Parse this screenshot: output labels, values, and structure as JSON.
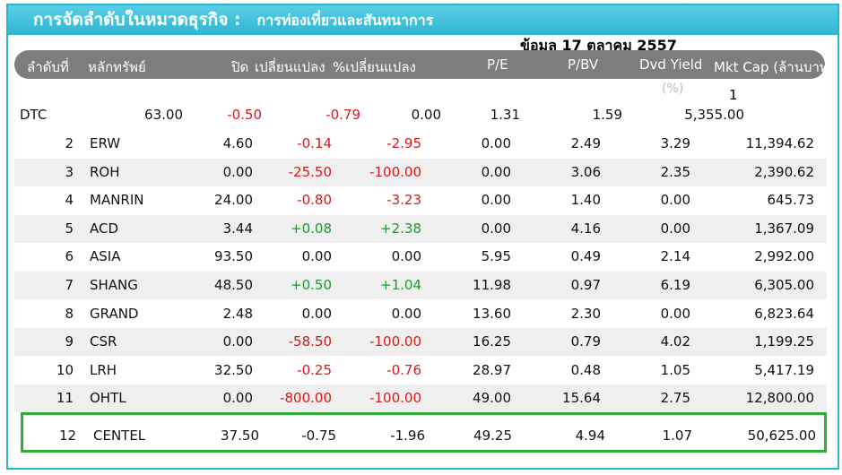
{
  "banner": {
    "title": "การจัดลำดับในหมวดธุรกิจ :",
    "category": "การท่องเที่ยวและสันทนาการ"
  },
  "date_text": "ข้อมูล 17 ตุลาคม 2557",
  "headers": {
    "rank": "ลำดับที่",
    "security": "หลักทรัพย์",
    "close": "ปิด",
    "change": "เปลี่ยนแปลง",
    "pct_change": "%เปลี่ยนแปลง",
    "pe": "P/E",
    "pbv": "P/BV",
    "dvd": "Dvd Yield",
    "dvd_unit": "(%)",
    "mktcap": "Mkt Cap (ล้านบาท)"
  },
  "first_row": {
    "rank": "1",
    "symbol": "DTC",
    "close": "63.00",
    "change": "-0.50",
    "pct_change": "-0.79",
    "pe": "0.00",
    "pbv": "1.31",
    "dvd": "1.59",
    "mktcap": "5,355.00"
  },
  "rows": [
    {
      "rank": "2",
      "symbol": "ERW",
      "close": "4.60",
      "change": "-0.14",
      "pct_change": "-2.95",
      "pe": "0.00",
      "pbv": "2.49",
      "dvd": "3.29",
      "mktcap": "11,394.62"
    },
    {
      "rank": "3",
      "symbol": "ROH",
      "close": "0.00",
      "change": "-25.50",
      "pct_change": "-100.00",
      "pe": "0.00",
      "pbv": "3.06",
      "dvd": "2.35",
      "mktcap": "2,390.62"
    },
    {
      "rank": "4",
      "symbol": "MANRIN",
      "close": "24.00",
      "change": "-0.80",
      "pct_change": "-3.23",
      "pe": "0.00",
      "pbv": "1.40",
      "dvd": "0.00",
      "mktcap": "645.73"
    },
    {
      "rank": "5",
      "symbol": "ACD",
      "close": "3.44",
      "change": "+0.08",
      "pct_change": "+2.38",
      "pe": "0.00",
      "pbv": "4.16",
      "dvd": "0.00",
      "mktcap": "1,367.09"
    },
    {
      "rank": "6",
      "symbol": "ASIA",
      "close": "93.50",
      "change": "0.00",
      "pct_change": "0.00",
      "pe": "5.95",
      "pbv": "0.49",
      "dvd": "2.14",
      "mktcap": "2,992.00"
    },
    {
      "rank": "7",
      "symbol": "SHANG",
      "close": "48.50",
      "change": "+0.50",
      "pct_change": "+1.04",
      "pe": "11.98",
      "pbv": "0.97",
      "dvd": "6.19",
      "mktcap": "6,305.00"
    },
    {
      "rank": "8",
      "symbol": "GRAND",
      "close": "2.48",
      "change": "0.00",
      "pct_change": "0.00",
      "pe": "13.60",
      "pbv": "2.30",
      "dvd": "0.00",
      "mktcap": "6,823.64"
    },
    {
      "rank": "9",
      "symbol": "CSR",
      "close": "0.00",
      "change": "-58.50",
      "pct_change": "-100.00",
      "pe": "16.25",
      "pbv": "0.79",
      "dvd": "4.02",
      "mktcap": "1,199.25"
    },
    {
      "rank": "10",
      "symbol": "LRH",
      "close": "32.50",
      "change": "-0.25",
      "pct_change": "-0.76",
      "pe": "28.97",
      "pbv": "0.48",
      "dvd": "1.05",
      "mktcap": "5,417.19"
    },
    {
      "rank": "11",
      "symbol": "OHTL",
      "close": "0.00",
      "change": "-800.00",
      "pct_change": "-100.00",
      "pe": "49.00",
      "pbv": "15.64",
      "dvd": "2.75",
      "mktcap": "12,800.00"
    }
  ],
  "highlight_row": {
    "rank": "12",
    "symbol": "CENTEL",
    "close": "37.50",
    "change": "-0.75",
    "pct_change": "-1.96",
    "pe": "49.25",
    "pbv": "4.94",
    "dvd": "1.07",
    "mktcap": "50,625.00"
  },
  "colors": {
    "accent": "#2ab3d0",
    "header": "#7d7d7d",
    "negative": "#d01c1c",
    "positive": "#1c9a2e",
    "highlight": "#2fad37"
  }
}
